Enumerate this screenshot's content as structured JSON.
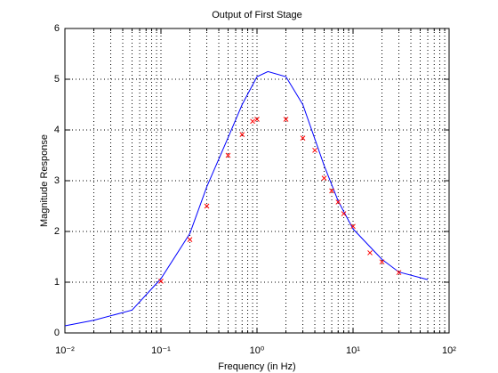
{
  "chart_data": {
    "type": "line",
    "title": "Output of First Stage",
    "xlabel": "Frequency (in Hz)",
    "ylabel": "Magnitude Response",
    "xscale": "log",
    "grid": true,
    "xlim": [
      0.01,
      100
    ],
    "ylim": [
      0,
      6
    ],
    "xticks": [
      {
        "value": 0.01,
        "label": "10⁻²"
      },
      {
        "value": 0.1,
        "label": "10⁻¹"
      },
      {
        "value": 1,
        "label": "10⁰"
      },
      {
        "value": 10,
        "label": "10¹"
      },
      {
        "value": 100,
        "label": "10²"
      }
    ],
    "yticks": [
      0,
      1,
      2,
      3,
      4,
      5,
      6
    ],
    "series": [
      {
        "type": "line",
        "color": "#0000ff",
        "x": [
          0.01,
          0.02,
          0.05,
          0.1,
          0.2,
          0.3,
          0.5,
          0.7,
          1,
          1.3,
          2,
          3,
          5,
          7,
          10,
          20,
          30,
          60
        ],
        "values": [
          0.14,
          0.25,
          0.45,
          1.07,
          1.96,
          2.88,
          3.85,
          4.5,
          5.05,
          5.15,
          5.05,
          4.5,
          3.3,
          2.6,
          2.05,
          1.45,
          1.2,
          1.05
        ]
      },
      {
        "type": "scatter",
        "color": "#ff0000",
        "x": [
          0.1,
          0.2,
          0.3,
          0.5,
          0.7,
          0.9,
          1,
          2,
          3,
          4,
          5,
          6,
          7,
          8,
          10,
          15,
          20,
          30
        ],
        "values": [
          1.02,
          1.84,
          2.5,
          3.5,
          3.91,
          4.17,
          4.21,
          4.21,
          3.84,
          3.6,
          3.05,
          2.8,
          2.58,
          2.35,
          2.1,
          1.58,
          1.4,
          1.19
        ]
      }
    ]
  }
}
